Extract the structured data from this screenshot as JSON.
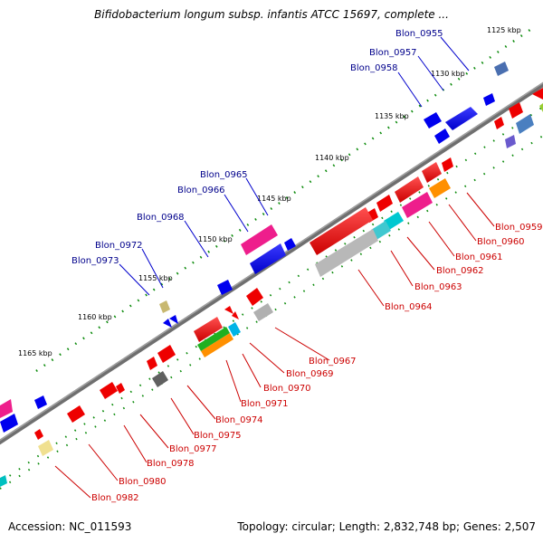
{
  "title": "Bifidobacterium longum subsp. infantis ATCC 15697, complete ...",
  "footer": {
    "accession": "Accession: NC_011593",
    "summary": "Topology: circular; Length: 2,832,748 bp; Genes: 2,507"
  },
  "scale_labels": [
    "1125 kbp",
    "1130 kbp",
    "1135 kbp",
    "1140 kbp",
    "1145 kbp",
    "1150 kbp",
    "1155 kbp",
    "1160 kbp",
    "1165 kbp"
  ],
  "forward_genes": [
    "Blon_0955",
    "Blon_0957",
    "Blon_0958",
    "Blon_0965",
    "Blon_0966",
    "Blon_0968",
    "Blon_0972",
    "Blon_0973"
  ],
  "reverse_genes": [
    "Blon_0959",
    "Blon_0960",
    "Blon_0961",
    "Blon_0962",
    "Blon_0963",
    "Blon_0964",
    "Blon_0967",
    "Blon_0969",
    "Blon_0970",
    "Blon_0971",
    "Blon_0974",
    "Blon_0975",
    "Blon_0977",
    "Blon_0978",
    "Blon_0980",
    "Blon_0982"
  ],
  "colors": {
    "backbone": "#808080",
    "forward_label": "#00008b",
    "reverse_label": "#cc0000",
    "forward_cds": "#0000ee",
    "reverse_cds": "#ee0000",
    "tick_minor": "#008000"
  }
}
